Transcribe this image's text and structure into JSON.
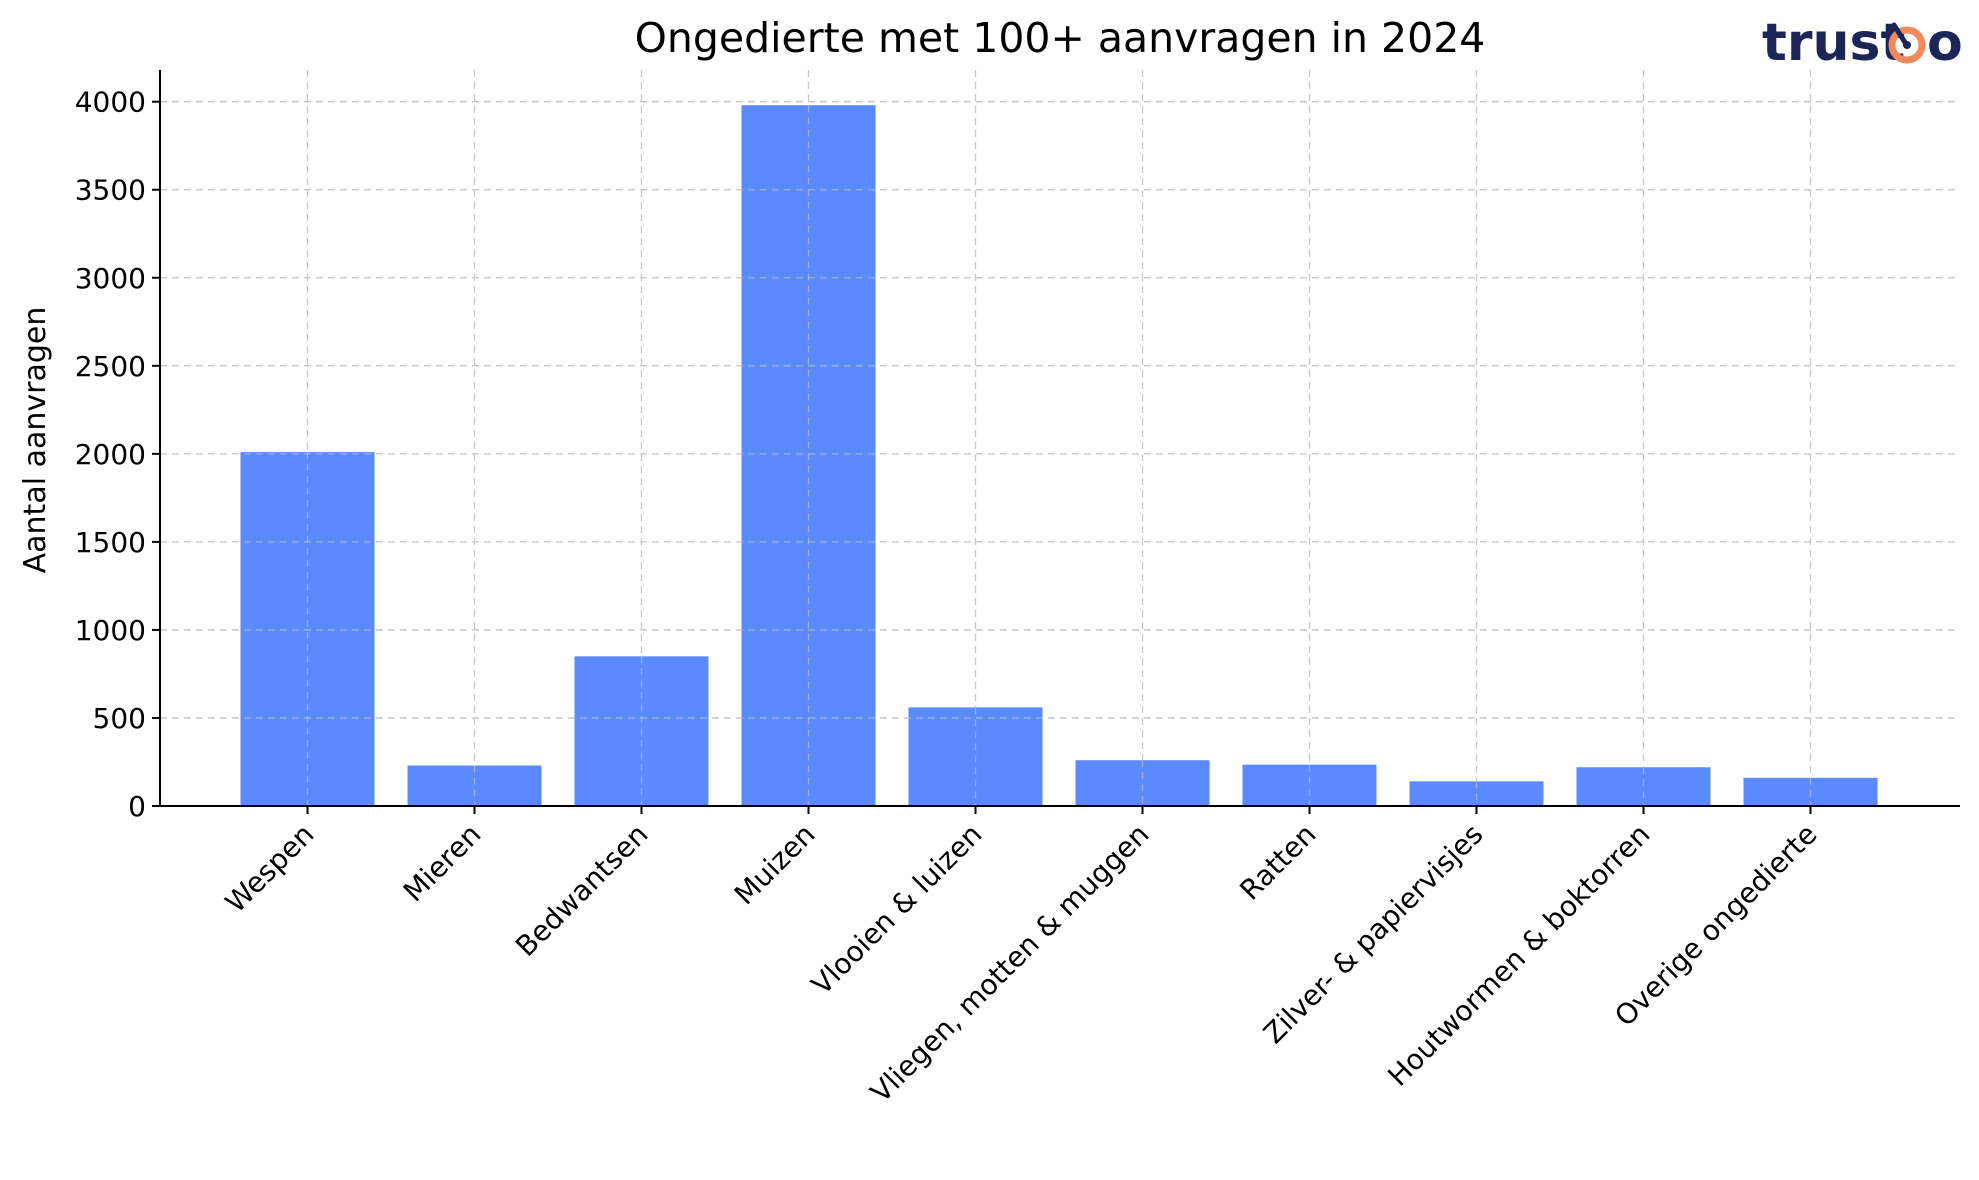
{
  "chart_data": {
    "type": "bar",
    "title": "Ongedierte met 100+ aanvragen in 2024",
    "xlabel": "",
    "ylabel": "Aantal aanvragen",
    "categories": [
      "Wespen",
      "Mieren",
      "Bedwantsen",
      "Muizen",
      "Vlooien & luizen",
      "Vliegen, motten & muggen",
      "Ratten",
      "Zilver- & papiervisjes",
      "Houtwormen & boktorren",
      "Overige ongedierte"
    ],
    "values": [
      2010,
      230,
      850,
      3980,
      560,
      260,
      235,
      140,
      220,
      160
    ],
    "ylim": [
      0,
      4180
    ],
    "yticks": [
      0,
      500,
      1000,
      1500,
      2000,
      2500,
      3000,
      3500,
      4000
    ],
    "grid": true,
    "bar_color": "#5a8afe"
  },
  "logo": {
    "text": "trustoo",
    "text_color": "#1b2557",
    "accent_color": "#f28a5b"
  }
}
